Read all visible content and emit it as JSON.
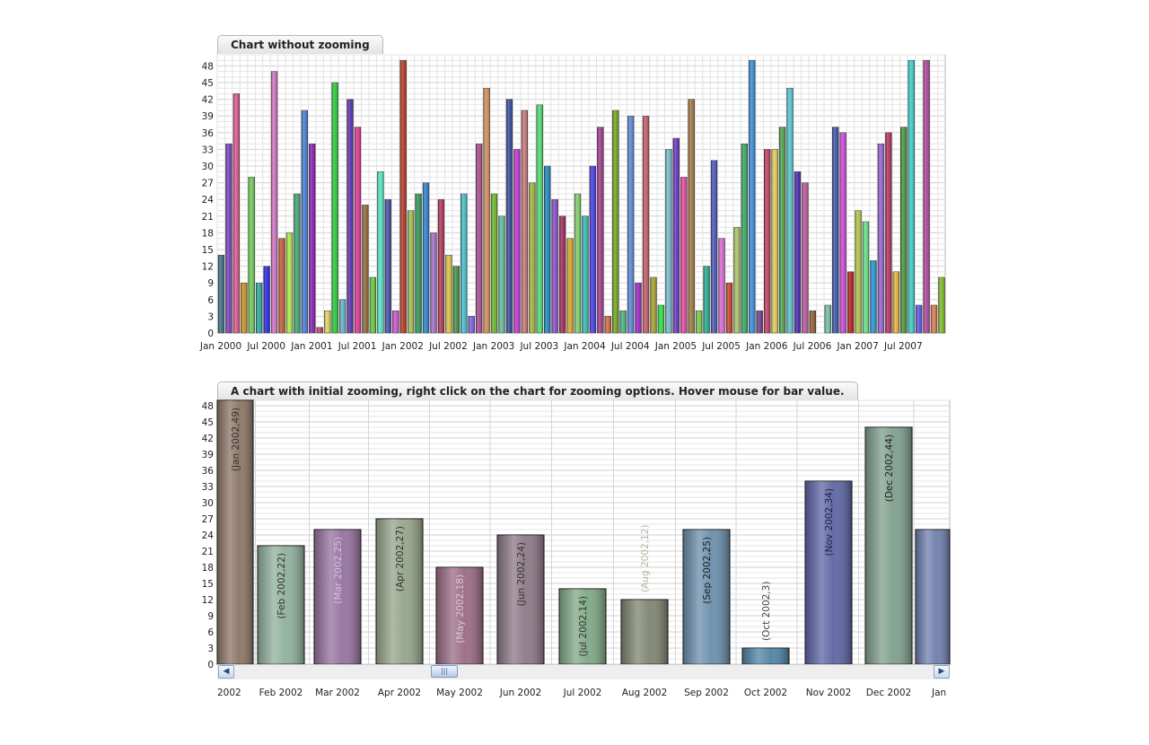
{
  "chart_data": [
    {
      "type": "bar",
      "title": "Chart without zooming",
      "ylim": [
        0,
        50
      ],
      "yticks": [
        0,
        3,
        6,
        9,
        12,
        15,
        18,
        21,
        24,
        27,
        30,
        33,
        36,
        39,
        42,
        45,
        48
      ],
      "xtick_labels": [
        "Jan 2000",
        "Jul 2000",
        "Jan 2001",
        "Jul 2001",
        "Jan 2002",
        "Jul 2002",
        "Jan 2003",
        "Jul 2003",
        "Jan 2004",
        "Jul 2004",
        "Jan 2005",
        "Jul 2005",
        "Jan 2006",
        "Jul 2006",
        "Jan 2007",
        "Jul 2007"
      ],
      "categories_start": "Jan 2000",
      "categories_end": "Dec 2007",
      "values": [
        14,
        34,
        43,
        9,
        28,
        9,
        12,
        47,
        17,
        18,
        25,
        40,
        34,
        1,
        4,
        45,
        6,
        42,
        37,
        23,
        10,
        29,
        24,
        4,
        49,
        22,
        25,
        27,
        18,
        24,
        14,
        12,
        25,
        3,
        34,
        44,
        25,
        21,
        42,
        33,
        40,
        27,
        41,
        30,
        24,
        21,
        17,
        25,
        21,
        30,
        37,
        3,
        40,
        4,
        39,
        9,
        39,
        10,
        5,
        33,
        35,
        28,
        42,
        4,
        12,
        31,
        17,
        9,
        19,
        34,
        49,
        4,
        33,
        33,
        37,
        44,
        29,
        27,
        4,
        0,
        5,
        37,
        36,
        11,
        22,
        20,
        13,
        34,
        36,
        11,
        37,
        49,
        5,
        49,
        5,
        10
      ],
      "grid": true,
      "legend": "none"
    },
    {
      "type": "bar",
      "title": "A chart with initial zooming, right click on the chart for zooming options. Hover mouse for bar value.",
      "ylim": [
        0,
        49
      ],
      "yticks": [
        0,
        3,
        6,
        9,
        12,
        15,
        18,
        21,
        24,
        27,
        30,
        33,
        36,
        39,
        42,
        45,
        48
      ],
      "categories": [
        "2002",
        "Feb 2002",
        "Mar 2002",
        "Apr 2002",
        "May 2002",
        "Jun 2002",
        "Jul 2002",
        "Aug 2002",
        "Sep 2002",
        "Oct 2002",
        "Nov 2002",
        "Dec 2002",
        "Jan"
      ],
      "values": [
        49,
        22,
        25,
        27,
        18,
        24,
        14,
        12,
        25,
        3,
        34,
        44,
        25
      ],
      "bar_labels": [
        "(Jan 2002,49)",
        "(Feb 2002,22)",
        "(Mar 2002,25)",
        "(Apr 2002,27)",
        "(May 2002,18)",
        "(Jun 2002,24)",
        "(Jul 2002,14)",
        "(Aug 2002,12)",
        "(Sep 2002,25)",
        "(Oct 2002,3)",
        "(Nov 2002,34)",
        "(Dec 2002,44)",
        ""
      ],
      "colors": [
        "#8c7464",
        "#8fb09c",
        "#9670a0",
        "#94a488",
        "#9a6a84",
        "#8c7886",
        "#7ea884",
        "#7e8470",
        "#6a8eac",
        "#4e84a4",
        "#5c64a4",
        "#7e9e8c",
        "#6e7eac"
      ],
      "label_colors": [
        "#333333",
        "#333333",
        "#cfc6d6",
        "#333333",
        "#d8c8d0",
        "#333333",
        "#333333",
        "#b8b2a4",
        "#222222",
        "#444444",
        "#222244",
        "#222222",
        "#333333"
      ],
      "grid": true,
      "legend": "none",
      "scrollbar": true
    }
  ]
}
